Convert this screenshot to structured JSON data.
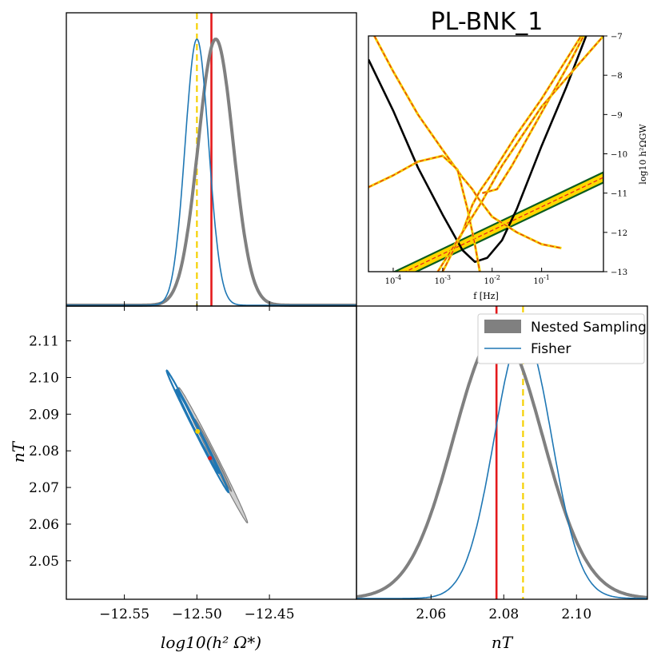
{
  "colors": {
    "nested": "#808080",
    "fisher": "#1f77b4",
    "truth": "#e41a1c",
    "estimate": "#f5d000",
    "sensitivity": "#000000",
    "pls_fill": "#ffd700",
    "pls_edge": "#0b5d1e"
  },
  "chart_data": [
    {
      "id": "posterior-logomega",
      "type": "line",
      "xlim": [
        -12.59,
        -12.39
      ],
      "x_ticks": [
        -12.55,
        -12.5,
        -12.45
      ],
      "truth_x": -12.49,
      "estimate_x": -12.5,
      "series": [
        {
          "name": "Nested Sampling",
          "mu": -12.487,
          "sigma": 0.0121
        },
        {
          "name": "Fisher",
          "mu": -12.5,
          "sigma": 0.0081
        }
      ]
    },
    {
      "id": "sensitivity-inset",
      "type": "line",
      "title": "PL-BNK_1",
      "xlabel": "f [Hz]",
      "ylabel": "log10 h²ΩGW",
      "xlim": [
        -4.5,
        0.25
      ],
      "ylim": [
        -13,
        -7
      ],
      "x_ticks": [
        -4,
        -3,
        -2,
        -1
      ],
      "x_tick_labels": [
        "10^-4",
        "10^-3",
        "10^-2",
        "10^-1"
      ],
      "y_ticks": [
        -13,
        -12,
        -11,
        -10,
        -9,
        -8,
        -7
      ],
      "y_tick_labels": [
        "-13",
        "-12",
        "-11",
        "-10",
        "-9",
        "-8",
        "-7"
      ],
      "signal_slope": 0.6,
      "signal_intercept": -10.75,
      "signal_band_halfwidth": 0.13,
      "curves": [
        {
          "name": "sensitivity",
          "points": [
            [
              -4.5,
              -7.6
            ],
            [
              -4.0,
              -8.9
            ],
            [
              -3.5,
              -10.35
            ],
            [
              -3.0,
              -11.55
            ],
            [
              -2.6,
              -12.45
            ],
            [
              -2.35,
              -12.75
            ],
            [
              -2.1,
              -12.65
            ],
            [
              -1.8,
              -12.2
            ],
            [
              -1.5,
              -11.4
            ],
            [
              -1.0,
              -9.8
            ],
            [
              -0.5,
              -8.3
            ],
            [
              -0.1,
              -7.0
            ]
          ]
        },
        {
          "name": "pls-a",
          "points": [
            [
              -4.38,
              -7.0
            ],
            [
              -4.0,
              -7.9
            ],
            [
              -3.5,
              -9.0
            ],
            [
              -3.0,
              -9.9
            ],
            [
              -2.6,
              -10.6
            ],
            [
              -2.4,
              -10.9
            ],
            [
              -2.3,
              -11.1
            ],
            [
              -2.0,
              -11.6
            ],
            [
              -1.5,
              -12.0
            ],
            [
              -1.0,
              -12.3
            ],
            [
              -0.6,
              -12.4
            ]
          ]
        },
        {
          "name": "pls-b",
          "points": [
            [
              -4.5,
              -10.85
            ],
            [
              -4.0,
              -10.55
            ],
            [
              -3.5,
              -10.2
            ],
            [
              -3.0,
              -10.05
            ],
            [
              -2.7,
              -10.4
            ],
            [
              -2.5,
              -11.4
            ],
            [
              -2.35,
              -12.3
            ],
            [
              -2.25,
              -13.0
            ]
          ]
        },
        {
          "name": "pls-c",
          "points": [
            [
              -3.0,
              -13.0
            ],
            [
              -2.6,
              -12.0
            ],
            [
              -2.4,
              -11.3
            ],
            [
              -2.25,
              -10.95
            ],
            [
              -2.0,
              -10.5
            ],
            [
              -1.5,
              -9.5
            ],
            [
              -1.0,
              -8.6
            ],
            [
              -0.5,
              -7.6
            ],
            [
              -0.2,
              -7.0
            ]
          ]
        },
        {
          "name": "pls-d",
          "points": [
            [
              -2.2,
              -11.0
            ],
            [
              -1.9,
              -10.9
            ],
            [
              -1.6,
              -10.3
            ],
            [
              -1.2,
              -9.4
            ],
            [
              -0.8,
              -8.5
            ],
            [
              -0.4,
              -7.6
            ],
            [
              -0.15,
              -7.0
            ]
          ]
        },
        {
          "name": "pls-e",
          "points": [
            [
              -3.1,
              -13.0
            ],
            [
              -2.6,
              -12.0
            ],
            [
              -2.2,
              -11.2
            ],
            [
              -1.8,
              -10.3
            ],
            [
              -1.0,
              -8.8
            ],
            [
              0.25,
              -7.0
            ]
          ]
        }
      ]
    },
    {
      "id": "joint-contour",
      "type": "scatter",
      "xlim": [
        -12.59,
        -12.39
      ],
      "ylim": [
        2.0395,
        2.1195
      ],
      "x_ticks": [
        -12.55,
        -12.5,
        -12.45
      ],
      "x_tick_labels": [
        "−12.55",
        "−12.50",
        "−12.45"
      ],
      "y_ticks": [
        2.05,
        2.06,
        2.07,
        2.08,
        2.09,
        2.1,
        2.11
      ],
      "y_tick_labels": [
        "2.05",
        "2.06",
        "2.07",
        "2.08",
        "2.09",
        "2.10",
        "2.11"
      ],
      "xlabel": "log10(h² Ω*)",
      "ylabel": "nT",
      "truth_point": [
        -12.491,
        2.078
      ],
      "estimate_point": [
        -12.4995,
        2.0853
      ],
      "nested_ellipses": [
        {
          "cx": -12.4888,
          "cy": 2.0788,
          "a": 0.03,
          "b": 0.0018,
          "angle": -0.52,
          "level": "2sigma"
        },
        {
          "cx": -12.4888,
          "cy": 2.0788,
          "a": 0.016,
          "b": 0.001,
          "angle": -0.52,
          "level": "1sigma"
        }
      ],
      "fisher_ellipses": [
        {
          "cx": -12.4995,
          "cy": 2.0853,
          "a": 0.027,
          "b": 0.0015,
          "angle": -0.57,
          "level": "2sigma"
        },
        {
          "cx": -12.4995,
          "cy": 2.0853,
          "a": 0.0185,
          "b": 0.001,
          "angle": -0.57,
          "level": "1sigma"
        }
      ]
    },
    {
      "id": "posterior-nt",
      "type": "line",
      "xlim": [
        2.0395,
        2.1195
      ],
      "x_ticks": [
        2.06,
        2.08,
        2.1
      ],
      "x_tick_labels": [
        "2.06",
        "2.08",
        "2.10"
      ],
      "xlabel": "nT",
      "truth_x": 2.078,
      "estimate_x": 2.0853,
      "series": [
        {
          "name": "Nested Sampling",
          "mu": 2.0785,
          "sigma": 0.01225
        },
        {
          "name": "Fisher",
          "mu": 2.0853,
          "sigma": 0.00788
        }
      ]
    }
  ],
  "legend": {
    "nested_label": "Nested Sampling",
    "fisher_label": "Fisher"
  },
  "labels": {
    "title": "PL-BNK_1",
    "joint_xlabel": "log10(h² Ω*)",
    "joint_ylabel": "nT",
    "nt_xlabel": "nT",
    "inset_xlabel": "f [Hz]",
    "inset_ylabel": "log10 h²ΩGW"
  }
}
